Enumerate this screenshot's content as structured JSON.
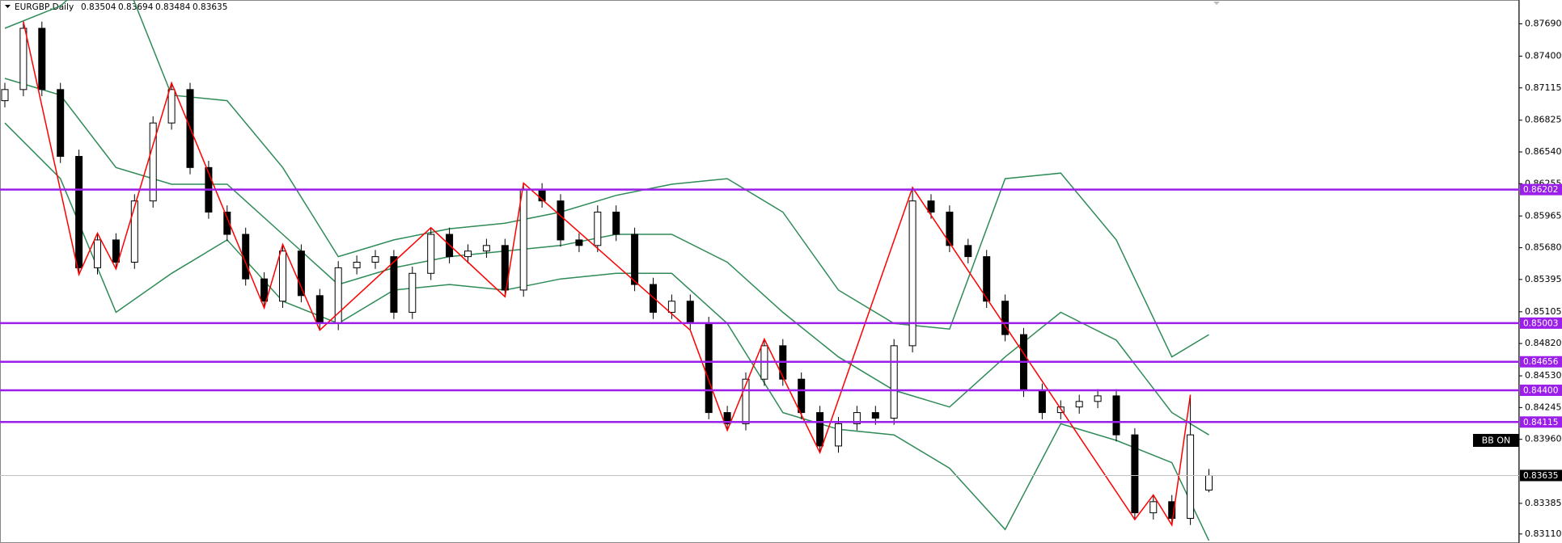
{
  "chart_data": {
    "type": "candlestick",
    "symbol": "EURGBP,Daily",
    "indicator_label": "BB ON",
    "ylim": [
      0.83029,
      0.87904
    ],
    "yticks": [
      {
        "value": 0.8769,
        "label": "0.87690"
      },
      {
        "value": 0.874,
        "label": "0.87400"
      },
      0.87115,
      0.86825,
      {
        "value": 0.8654,
        "label": "0.86540"
      },
      0.86255,
      0.85965,
      {
        "value": 0.8568,
        "label": "0.85680"
      },
      0.85395,
      0.85105,
      {
        "value": 0.8482,
        "label": "0.84820"
      },
      {
        "value": 0.8453,
        "label": "0.84530"
      },
      0.84245,
      {
        "value": 0.8396,
        "label": "0.83960"
      },
      0.83385,
      {
        "value": 0.8311,
        "label": "0.83110"
      }
    ],
    "open": [
      0.87,
      0.871,
      0.8765,
      0.871,
      0.865,
      0.855,
      0.8575,
      0.8555,
      0.861,
      0.868,
      0.871,
      0.864,
      0.86,
      0.858,
      0.854,
      0.852,
      0.8565,
      0.8525,
      0.85,
      0.855,
      0.8555,
      0.856,
      0.851,
      0.8545,
      0.858,
      0.856,
      0.8565,
      0.857,
      0.853,
      0.862,
      0.861,
      0.8575,
      0.857,
      0.86,
      0.858,
      0.8535,
      0.851,
      0.852,
      0.85,
      0.842,
      0.841,
      0.845,
      0.848,
      0.845,
      0.842,
      0.839,
      0.841,
      0.842,
      0.8415,
      0.848,
      0.861,
      0.86,
      0.857,
      0.856,
      0.852,
      0.849,
      0.844,
      0.842,
      0.8425,
      0.843,
      0.8435,
      0.84,
      0.833,
      0.834,
      0.8325,
      0.83504
    ],
    "high": [
      0.8716,
      0.8771,
      0.8771,
      0.8716,
      0.8656,
      0.8581,
      0.8581,
      0.8616,
      0.8686,
      0.8716,
      0.8716,
      0.8646,
      0.8606,
      0.8586,
      0.8546,
      0.8571,
      0.8571,
      0.8531,
      0.8556,
      0.8561,
      0.8566,
      0.8566,
      0.8551,
      0.8586,
      0.8586,
      0.8571,
      0.8576,
      0.8576,
      0.8626,
      0.8626,
      0.8616,
      0.8581,
      0.8606,
      0.8606,
      0.8586,
      0.8541,
      0.8526,
      0.8526,
      0.8506,
      0.8426,
      0.8456,
      0.8486,
      0.8486,
      0.8456,
      0.8426,
      0.8416,
      0.8426,
      0.8426,
      0.8486,
      0.8622,
      0.8616,
      0.8606,
      0.8576,
      0.8566,
      0.8526,
      0.8496,
      0.8446,
      0.8431,
      0.8436,
      0.8441,
      0.8441,
      0.8406,
      0.8346,
      0.8346,
      0.8436,
      0.83694
    ],
    "low": [
      0.8694,
      0.8704,
      0.8704,
      0.8644,
      0.8544,
      0.8544,
      0.8549,
      0.8549,
      0.8604,
      0.8674,
      0.8634,
      0.8594,
      0.8574,
      0.8534,
      0.8514,
      0.8514,
      0.8519,
      0.8494,
      0.8494,
      0.8544,
      0.8549,
      0.8504,
      0.8504,
      0.8539,
      0.8554,
      0.8554,
      0.8559,
      0.8524,
      0.8524,
      0.8604,
      0.8569,
      0.8564,
      0.8564,
      0.8574,
      0.8529,
      0.8504,
      0.8504,
      0.8494,
      0.8414,
      0.8404,
      0.8404,
      0.8444,
      0.8444,
      0.8414,
      0.8384,
      0.8384,
      0.8404,
      0.8409,
      0.8409,
      0.8474,
      0.8594,
      0.8564,
      0.8554,
      0.8514,
      0.8484,
      0.8434,
      0.8414,
      0.8414,
      0.8419,
      0.8424,
      0.8394,
      0.8324,
      0.8324,
      0.8319,
      0.8319,
      0.83484
    ],
    "close": [
      0.871,
      0.8765,
      0.871,
      0.865,
      0.855,
      0.8575,
      0.8555,
      0.861,
      0.868,
      0.871,
      0.864,
      0.86,
      0.858,
      0.854,
      0.852,
      0.8565,
      0.8525,
      0.85,
      0.855,
      0.8555,
      0.856,
      0.851,
      0.8545,
      0.858,
      0.856,
      0.8565,
      0.857,
      0.853,
      0.862,
      0.861,
      0.8575,
      0.857,
      0.86,
      0.858,
      0.8535,
      0.851,
      0.852,
      0.85,
      0.842,
      0.841,
      0.845,
      0.848,
      0.845,
      0.842,
      0.839,
      0.841,
      0.842,
      0.8415,
      0.848,
      0.861,
      0.86,
      0.857,
      0.856,
      0.852,
      0.849,
      0.844,
      0.842,
      0.8425,
      0.843,
      0.8435,
      0.84,
      0.833,
      0.834,
      0.8325,
      0.84,
      0.83635
    ],
    "bands": {
      "color": "#2e8b57",
      "x": [
        0,
        3,
        6,
        9,
        12,
        15,
        18,
        21,
        24,
        27,
        30,
        33,
        36,
        39,
        42,
        45,
        48,
        51,
        54,
        57,
        60,
        63,
        65
      ],
      "upper": [
        0.8765,
        0.8785,
        0.883,
        0.8705,
        0.87,
        0.864,
        0.856,
        0.8575,
        0.8585,
        0.859,
        0.86,
        0.8615,
        0.8625,
        0.863,
        0.86,
        0.853,
        0.85,
        0.8495,
        0.863,
        0.8635,
        0.8575,
        0.847,
        0.849
      ],
      "middle": [
        0.872,
        0.8705,
        0.864,
        0.8625,
        0.8625,
        0.858,
        0.8535,
        0.855,
        0.856,
        0.8565,
        0.857,
        0.858,
        0.858,
        0.8555,
        0.851,
        0.847,
        0.844,
        0.8425,
        0.847,
        0.851,
        0.8485,
        0.842,
        0.84
      ],
      "lower": [
        0.868,
        0.863,
        0.851,
        0.8545,
        0.8575,
        0.852,
        0.85,
        0.853,
        0.8535,
        0.853,
        0.854,
        0.8545,
        0.8545,
        0.85,
        0.842,
        0.8405,
        0.84,
        0.837,
        0.8315,
        0.841,
        0.8395,
        0.8375,
        0.8305
      ]
    },
    "zigzag": {
      "color": "#ff0000",
      "x": [
        1,
        4,
        5,
        6,
        9,
        14,
        15,
        17,
        23,
        27,
        28,
        37,
        39,
        41,
        44,
        49,
        61,
        62,
        63,
        64
      ],
      "y": [
        0.8771,
        0.8544,
        0.8581,
        0.8549,
        0.8716,
        0.8514,
        0.8571,
        0.8494,
        0.8586,
        0.8524,
        0.8626,
        0.8494,
        0.8404,
        0.8486,
        0.8384,
        0.8622,
        0.8324,
        0.8346,
        0.8319,
        0.8436
      ]
    },
    "levels": [
      0.86202,
      0.85003,
      0.84656,
      {
        "value": 0.844,
        "label": "0.84400"
      },
      0.84115
    ],
    "level_color": "#9b1fe8"
  }
}
